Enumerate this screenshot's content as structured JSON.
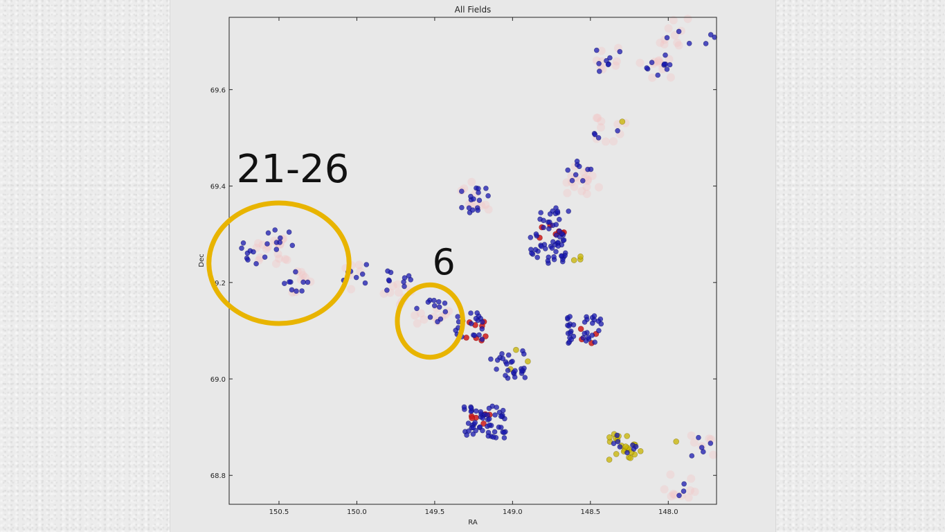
{
  "chart_data": {
    "type": "scatter",
    "title": "All Fields",
    "xlabel": "RA",
    "ylabel": "Dec",
    "xlim": [
      150.82,
      147.69
    ],
    "ylim": [
      68.74,
      69.75
    ],
    "x_reversed": true,
    "xticks": [
      150.5,
      150.0,
      149.5,
      149.0,
      148.5,
      148.0
    ],
    "xtick_labels": [
      "150.5",
      "150.0",
      "149.5",
      "149.0",
      "148.5",
      "148.0"
    ],
    "yticks": [
      68.8,
      69.0,
      69.2,
      69.4,
      69.6
    ],
    "ytick_labels": [
      "68.8",
      "69.0",
      "69.2",
      "69.4",
      "69.6"
    ],
    "grid": false,
    "colors": {
      "blue": "#1a1ab0",
      "red": "#cc1a1a",
      "yellow": "#c8b400",
      "pink": "#f3c4c4",
      "annotation": "#e8b400"
    },
    "series": [
      {
        "color": "blue",
        "clusters": [
          {
            "ra": 150.65,
            "dec": 69.26,
            "n": 10
          },
          {
            "ra": 150.49,
            "dec": 69.29,
            "n": 8
          },
          {
            "ra": 150.4,
            "dec": 69.2,
            "n": 9
          },
          {
            "ra": 150.02,
            "dec": 69.22,
            "n": 7
          },
          {
            "ra": 149.74,
            "dec": 69.2,
            "n": 10
          },
          {
            "ra": 149.52,
            "dec": 69.14,
            "n": 12
          },
          {
            "ra": 149.24,
            "dec": 69.37,
            "n": 16
          },
          {
            "ra": 149.28,
            "dec": 69.11,
            "n": 22
          },
          {
            "ra": 149.03,
            "dec": 69.03,
            "n": 26
          },
          {
            "ra": 148.78,
            "dec": 69.27,
            "n": 40
          },
          {
            "ra": 148.72,
            "dec": 69.33,
            "n": 18
          },
          {
            "ra": 148.53,
            "dec": 69.1,
            "n": 34
          },
          {
            "ra": 148.58,
            "dec": 69.43,
            "n": 9
          },
          {
            "ra": 149.18,
            "dec": 68.91,
            "n": 55
          },
          {
            "ra": 148.4,
            "dec": 69.52,
            "n": 4
          },
          {
            "ra": 148.39,
            "dec": 69.66,
            "n": 8
          },
          {
            "ra": 148.05,
            "dec": 69.65,
            "n": 10
          },
          {
            "ra": 147.93,
            "dec": 69.71,
            "n": 3
          },
          {
            "ra": 147.73,
            "dec": 69.71,
            "n": 3
          },
          {
            "ra": 147.8,
            "dec": 68.86,
            "n": 5
          },
          {
            "ra": 147.91,
            "dec": 68.77,
            "n": 3
          },
          {
            "ra": 148.28,
            "dec": 68.86,
            "n": 8
          }
        ]
      },
      {
        "color": "red",
        "clusters": [
          {
            "ra": 148.75,
            "dec": 69.3,
            "n": 8
          },
          {
            "ra": 149.22,
            "dec": 69.1,
            "n": 8
          },
          {
            "ra": 149.2,
            "dec": 68.91,
            "n": 6
          },
          {
            "ra": 148.49,
            "dec": 69.09,
            "n": 4
          }
        ]
      },
      {
        "color": "yellow",
        "clusters": [
          {
            "ra": 148.28,
            "dec": 68.86,
            "n": 22
          },
          {
            "ra": 148.0,
            "dec": 68.87,
            "n": 1
          },
          {
            "ra": 148.95,
            "dec": 69.04,
            "n": 3
          },
          {
            "ra": 148.64,
            "dec": 69.26,
            "n": 3
          },
          {
            "ra": 148.32,
            "dec": 69.52,
            "n": 1
          }
        ]
      },
      {
        "color": "pink",
        "clusters": [
          {
            "ra": 150.55,
            "dec": 69.27,
            "n": 18
          },
          {
            "ra": 150.4,
            "dec": 69.2,
            "n": 8
          },
          {
            "ra": 150.02,
            "dec": 69.21,
            "n": 6
          },
          {
            "ra": 149.72,
            "dec": 69.18,
            "n": 10
          },
          {
            "ra": 149.52,
            "dec": 69.14,
            "n": 10
          },
          {
            "ra": 149.22,
            "dec": 69.38,
            "n": 10
          },
          {
            "ra": 148.56,
            "dec": 69.41,
            "n": 18
          },
          {
            "ra": 148.37,
            "dec": 69.52,
            "n": 10
          },
          {
            "ra": 148.38,
            "dec": 69.66,
            "n": 8
          },
          {
            "ra": 148.08,
            "dec": 69.65,
            "n": 10
          },
          {
            "ra": 147.98,
            "dec": 69.72,
            "n": 10
          },
          {
            "ra": 147.92,
            "dec": 68.78,
            "n": 10
          },
          {
            "ra": 147.78,
            "dec": 68.86,
            "n": 6
          }
        ]
      }
    ],
    "annotations": [
      {
        "type": "ellipse",
        "color": "annotation",
        "label": "21-26",
        "ra": 150.5,
        "dec": 69.24,
        "dra": 0.45,
        "ddec": 0.125
      },
      {
        "type": "ellipse",
        "color": "annotation",
        "label": "6",
        "ra": 149.53,
        "dec": 69.12,
        "dra": 0.21,
        "ddec": 0.075
      }
    ]
  }
}
